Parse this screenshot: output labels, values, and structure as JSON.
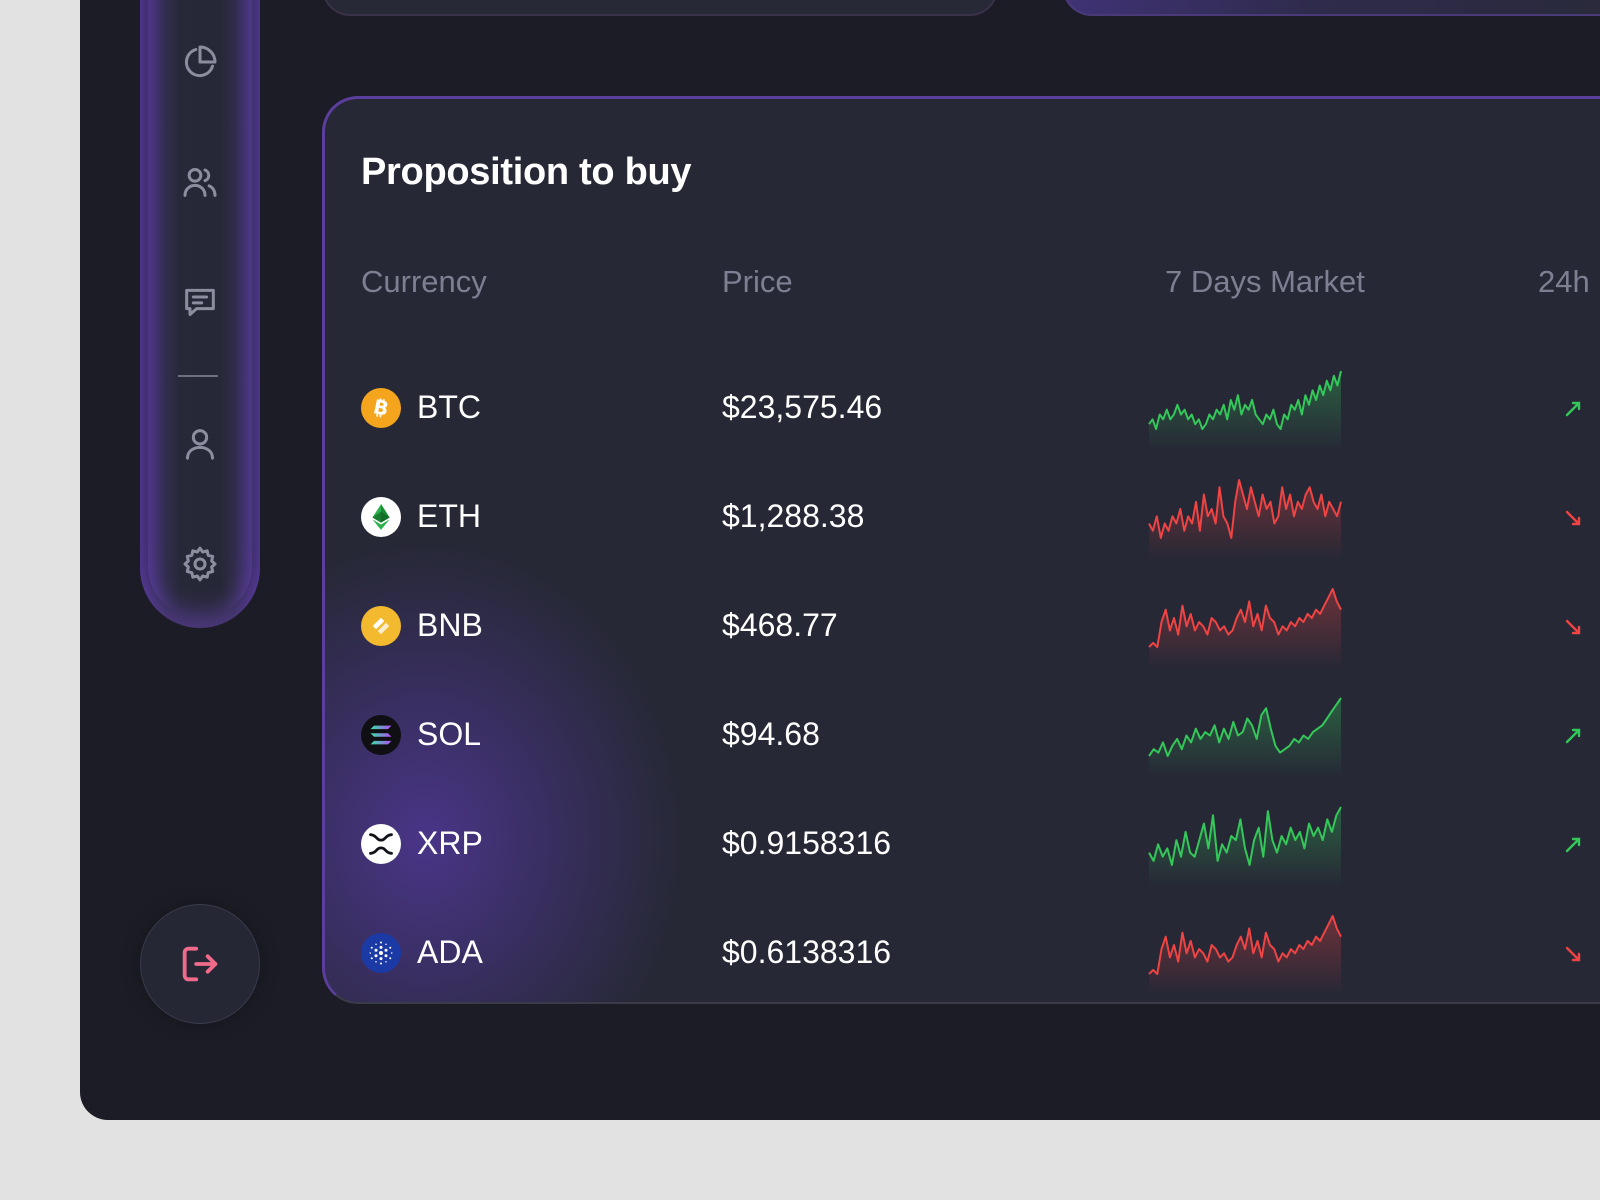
{
  "card": {
    "title": "Proposition to buy",
    "columns": {
      "currency": "Currency",
      "price": "Price",
      "market": "7 Days Market",
      "change": "24h"
    }
  },
  "rows": [
    {
      "symbol": "BTC",
      "price": "$23,575.46",
      "trend": "up",
      "icon": "bitcoin-icon",
      "icon_color": "#f4a51d",
      "market": [
        4,
        5,
        3,
        6,
        5,
        7,
        5,
        6,
        8,
        6,
        7,
        5,
        6,
        4,
        5,
        3,
        4,
        6,
        5,
        7,
        6,
        8,
        5,
        9,
        7,
        10,
        6,
        8,
        7,
        9,
        6,
        5,
        4,
        6,
        5,
        7,
        4,
        3,
        6,
        5,
        8,
        7,
        9,
        6,
        10,
        8,
        11,
        9,
        12,
        10,
        13,
        11,
        14,
        12,
        15
      ]
    },
    {
      "symbol": "ETH",
      "price": "$1,288.38",
      "trend": "down",
      "icon": "ethereum-icon",
      "icon_color": "#ffffff",
      "market": [
        6,
        5,
        7,
        4,
        6,
        5,
        7,
        6,
        8,
        5,
        7,
        6,
        9,
        5,
        10,
        7,
        8,
        6,
        11,
        7,
        6,
        4,
        9,
        12,
        10,
        8,
        11,
        9,
        7,
        10,
        8,
        9,
        6,
        7,
        11,
        8,
        10,
        7,
        9,
        8,
        10,
        11,
        9,
        8,
        10,
        7,
        9,
        8,
        7,
        9
      ]
    },
    {
      "symbol": "BNB",
      "price": "$468.77",
      "trend": "down",
      "icon": "bnb-icon",
      "icon_color": "#f3ba2f",
      "market": [
        2,
        3,
        2,
        8,
        11,
        6,
        9,
        5,
        12,
        7,
        10,
        6,
        8,
        7,
        5,
        9,
        8,
        6,
        7,
        5,
        6,
        9,
        11,
        8,
        13,
        7,
        10,
        6,
        12,
        9,
        8,
        5,
        7,
        6,
        8,
        7,
        9,
        8,
        10,
        9,
        11,
        10,
        12,
        14,
        16,
        13,
        11
      ]
    },
    {
      "symbol": "SOL",
      "price": "$94.68",
      "trend": "up",
      "icon": "solana-icon",
      "icon_color": "#0f0f14",
      "market": [
        3,
        5,
        4,
        7,
        3,
        6,
        8,
        5,
        9,
        7,
        11,
        8,
        10,
        9,
        12,
        7,
        11,
        8,
        13,
        9,
        10,
        14,
        12,
        8,
        15,
        17,
        11,
        6,
        4,
        5,
        6,
        8,
        7,
        9,
        8,
        10,
        11,
        12,
        14,
        16,
        18,
        20
      ]
    },
    {
      "symbol": "XRP",
      "price": "$0.9158316",
      "trend": "up",
      "icon": "xrp-icon",
      "icon_color": "#ffffff",
      "market": [
        6,
        4,
        8,
        5,
        7,
        3,
        9,
        5,
        11,
        6,
        5,
        9,
        13,
        7,
        15,
        4,
        8,
        6,
        10,
        9,
        14,
        7,
        3,
        9,
        12,
        5,
        16,
        9,
        6,
        10,
        8,
        12,
        9,
        11,
        7,
        13,
        10,
        12,
        9,
        14,
        11,
        15,
        17
      ]
    },
    {
      "symbol": "ADA",
      "price": "$0.6138316",
      "trend": "down",
      "icon": "cardano-icon",
      "icon_color": "#1c3aa6",
      "market": [
        2,
        3,
        2,
        8,
        11,
        6,
        9,
        5,
        12,
        7,
        10,
        6,
        8,
        7,
        5,
        9,
        8,
        6,
        7,
        5,
        6,
        9,
        11,
        8,
        13,
        7,
        10,
        6,
        12,
        9,
        8,
        5,
        7,
        6,
        8,
        7,
        9,
        8,
        10,
        9,
        11,
        10,
        12,
        14,
        16,
        13,
        11
      ]
    }
  ],
  "colors": {
    "up": "#34c759",
    "down": "#ef4444",
    "accent": "#7b4dd6",
    "logout": "#f06a8a"
  },
  "sidebar": {
    "items": [
      {
        "icon": "pie-chart-icon"
      },
      {
        "icon": "users-icon"
      },
      {
        "icon": "chat-icon"
      },
      {
        "icon": "user-icon"
      },
      {
        "icon": "gear-icon"
      }
    ],
    "logout_icon": "logout-icon"
  }
}
